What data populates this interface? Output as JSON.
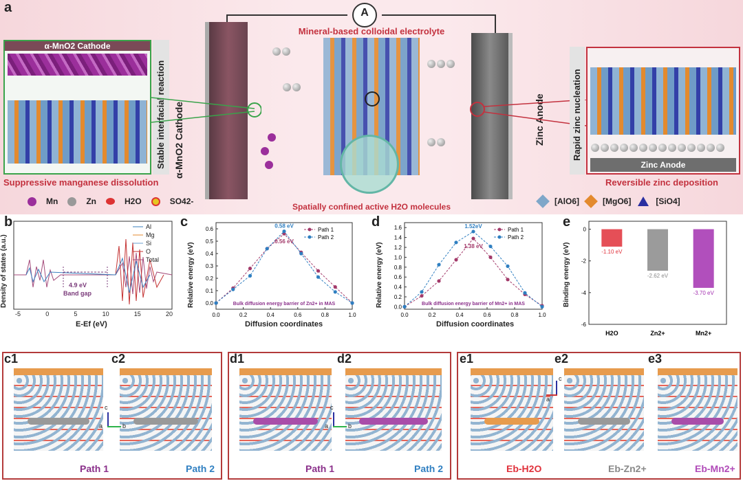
{
  "panel_labels": {
    "a": "a",
    "b": "b",
    "c": "c",
    "d": "d",
    "e": "e"
  },
  "panel_a": {
    "ammeter": "A",
    "electrolyte_title": "Mineral-based colloidal electrolyte",
    "cathode_box_title": "α-MnO2 Cathode",
    "stable_reaction": "Stable interfacial reaction",
    "cathode_label": "α-MnO2 Cathode",
    "anode_label": "Zinc Anode",
    "rapid_nucleation": "Rapid zinc nucleation",
    "anode_box_title": "Zinc Anode",
    "suppressive": "Suppressive manganese dissolution",
    "reversible": "Reversible zinc deposition",
    "confined": "Spatially confined active H2O molecules",
    "legend_left": [
      "Mn",
      "Zn",
      "H2O",
      "SO42-"
    ],
    "legend_right": [
      "[AlO6]",
      "[MgO6]",
      "[SiO4]"
    ],
    "colors": {
      "Mn": "#9b2f9b",
      "Zn": "#9a9a9a",
      "AlO6": "#7fa7c9",
      "MgO6": "#e38a2e",
      "SiO4": "#2a2fa0"
    }
  },
  "panel_b": {
    "ylabel": "Density of states (a.u.)",
    "xlabel": "E-Ef (eV)",
    "xticks": [
      "-5",
      "0",
      "5",
      "10",
      "15",
      "20"
    ],
    "legend": [
      "Al",
      "Mg",
      "Si",
      "O",
      "Total"
    ],
    "gap_value": "4.9 eV",
    "gap_label": "Band gap"
  },
  "panel_c": {
    "ylabel": "Relative energy (eV)",
    "xlabel": "Diffusion coordinates",
    "xticks": [
      "0.0",
      "0.2",
      "0.4",
      "0.6",
      "0.8",
      "1.0"
    ],
    "yticks": [
      "0.0",
      "0.1",
      "0.2",
      "0.3",
      "0.4",
      "0.5",
      "0.6"
    ],
    "legend": [
      "Path 1",
      "Path 2"
    ],
    "peak_path2": "0.58 eV",
    "peak_path1": "0.56 eV",
    "note": "Bulk diffusion energy barrier of Zn2+ in MAS"
  },
  "panel_d": {
    "ylabel": "Relative energy (eV)",
    "xlabel": "Diffusion coordinates",
    "xticks": [
      "0.0",
      "0.2",
      "0.4",
      "0.6",
      "0.8",
      "1.0"
    ],
    "yticks": [
      "0.0",
      "0.2",
      "0.4",
      "0.6",
      "0.8",
      "1.0",
      "1.2",
      "1.4",
      "1.6"
    ],
    "legend": [
      "Path 1",
      "Path 2"
    ],
    "peak_path2": "1.52eV",
    "peak_path1": "1.38 eV",
    "note": "Bulk diffusion energy barrier of Mn2+ in MAS"
  },
  "panel_e": {
    "ylabel": "Binding energy (eV)",
    "yticks": [
      "0",
      "-2",
      "-4",
      "-6"
    ],
    "categories": [
      "H2O",
      "Zn2+",
      "Mn2+"
    ],
    "value_labels": [
      "-1.10 eV",
      "-2.62 eV",
      "-3.70 eV"
    ]
  },
  "bottom": {
    "c1": "c1",
    "c2": "c2",
    "d1": "d1",
    "d2": "d2",
    "e1": "e1",
    "e2": "e2",
    "e3": "e3",
    "c_path1": "Path 1",
    "c_path2": "Path 2",
    "d_path1": "Path 1",
    "d_path2": "Path 2",
    "eb_h2o": "Eb-H2O",
    "eb_zn": "Eb-Zn2+",
    "eb_mn": "Eb-Mn2+",
    "axis_a": "a",
    "axis_b": "b",
    "axis_c": "c"
  },
  "chart_data": [
    {
      "type": "line",
      "x": [
        0.0,
        0.125,
        0.25,
        0.375,
        0.5,
        0.625,
        0.75,
        0.875,
        1.0
      ],
      "series": [
        {
          "name": "Path 1",
          "values": [
            0.0,
            0.12,
            0.28,
            0.44,
            0.56,
            0.41,
            0.26,
            0.13,
            0.0
          ],
          "color": "#a33a6a"
        },
        {
          "name": "Path 2",
          "values": [
            0.0,
            0.11,
            0.22,
            0.44,
            0.58,
            0.4,
            0.21,
            0.09,
            0.0
          ],
          "color": "#2f7fc1"
        }
      ],
      "xlabel": "Diffusion coordinates",
      "ylabel": "Relative energy (eV)",
      "xlim": [
        0,
        1
      ],
      "ylim": [
        -0.05,
        0.65
      ]
    },
    {
      "type": "line",
      "x": [
        0.0,
        0.125,
        0.25,
        0.375,
        0.5,
        0.625,
        0.75,
        0.875,
        1.0
      ],
      "series": [
        {
          "name": "Path 1",
          "values": [
            0.0,
            0.22,
            0.52,
            0.95,
            1.38,
            1.0,
            0.55,
            0.25,
            0.02
          ],
          "color": "#a33a6a"
        },
        {
          "name": "Path 2",
          "values": [
            0.0,
            0.3,
            0.85,
            1.3,
            1.52,
            1.22,
            0.82,
            0.28,
            0.0
          ],
          "color": "#2f7fc1"
        }
      ],
      "xlabel": "Diffusion coordinates",
      "ylabel": "Relative energy (eV)",
      "xlim": [
        0,
        1
      ],
      "ylim": [
        -0.05,
        1.7
      ]
    },
    {
      "type": "bar",
      "categories": [
        "H2O",
        "Zn2+",
        "Mn2+"
      ],
      "values": [
        -1.1,
        -2.62,
        -3.7
      ],
      "colors": [
        "#e0303a",
        "#8a8a8a",
        "#a330b0"
      ],
      "ylabel": "Binding energy (eV)",
      "ylim": [
        -6,
        0.5
      ]
    }
  ]
}
